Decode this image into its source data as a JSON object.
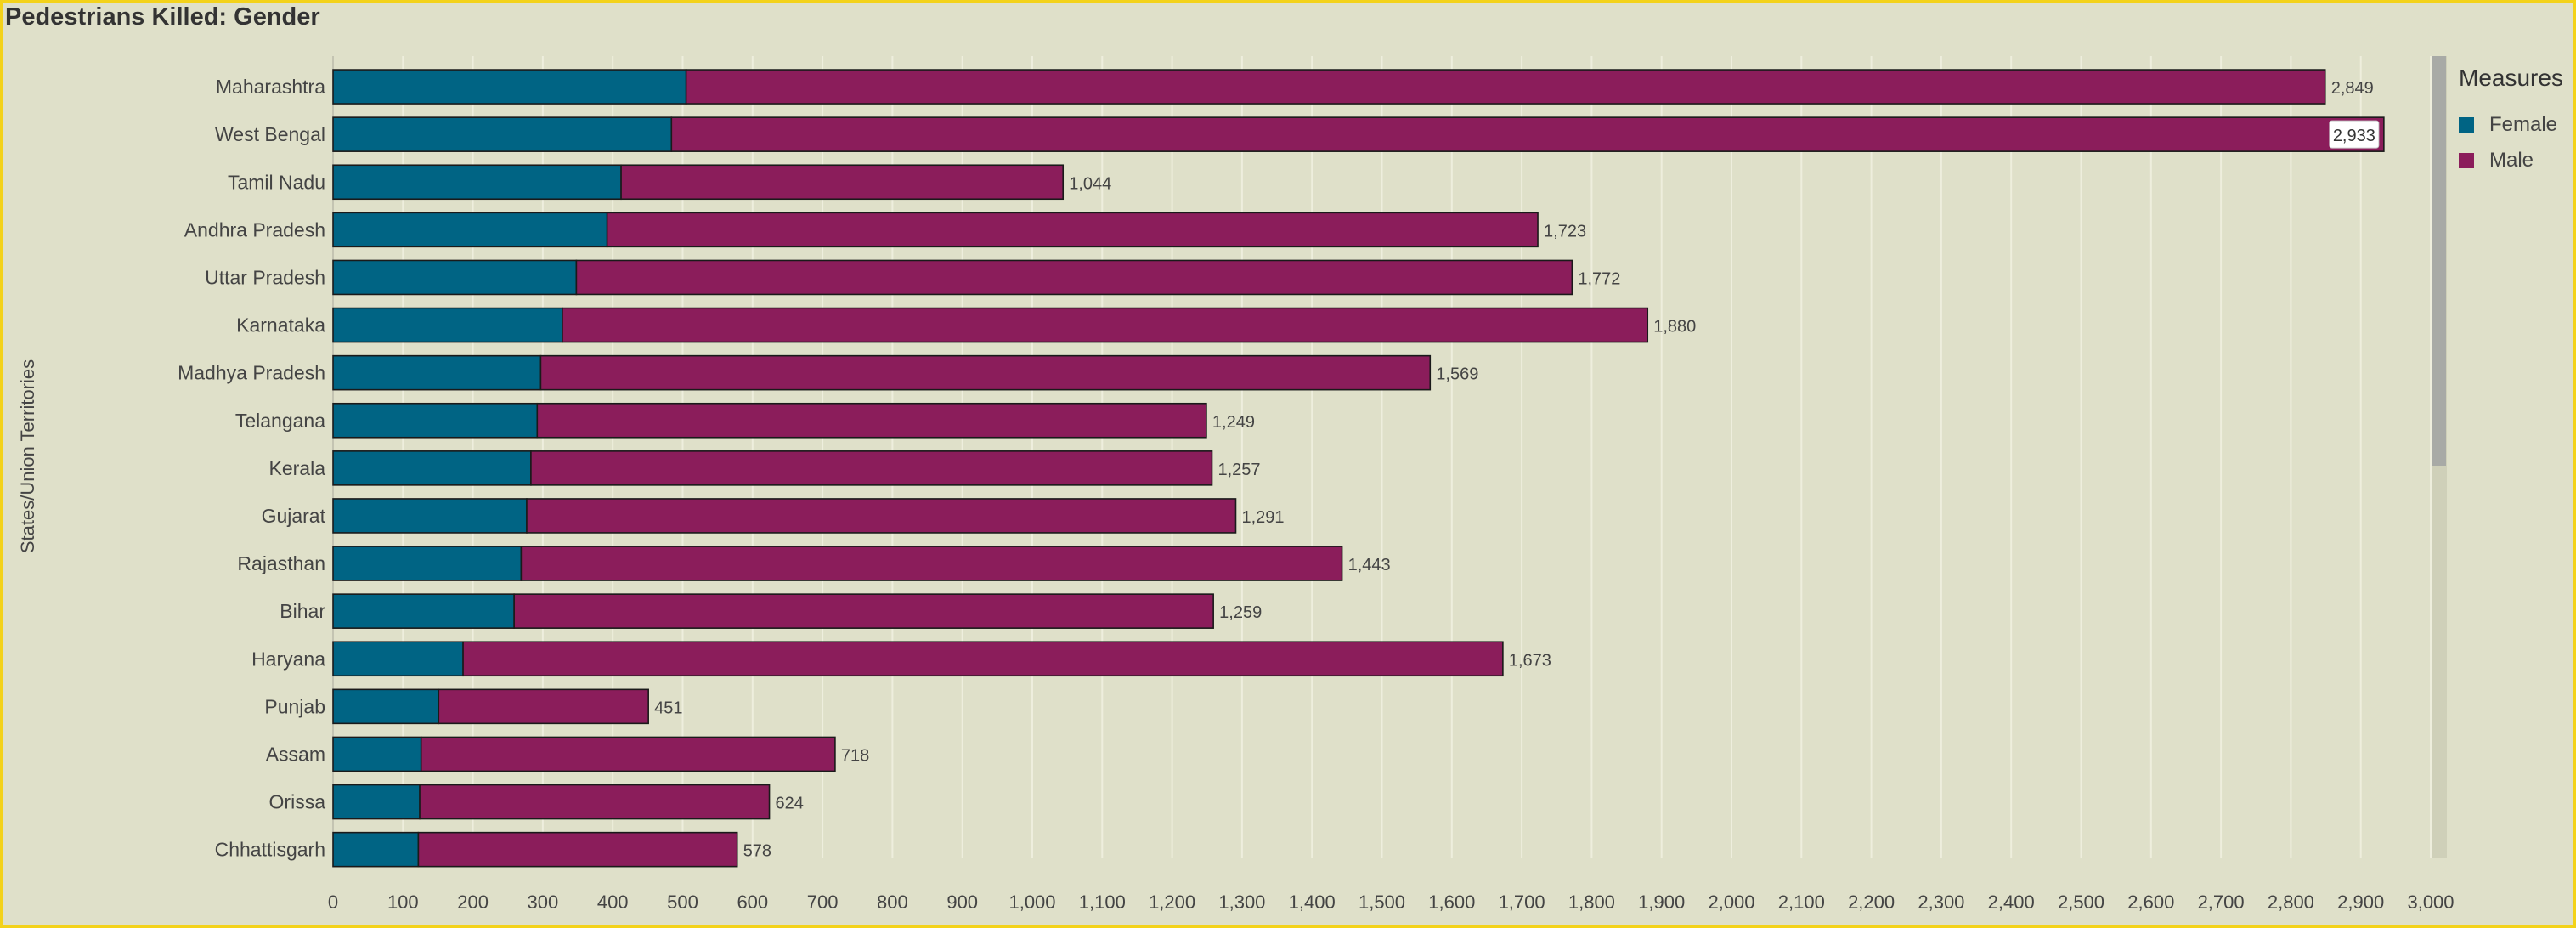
{
  "header": {
    "title": "Pedestrians Killed: Gender"
  },
  "legend": {
    "title": "Measures",
    "items": [
      {
        "label": "Female",
        "color": "#006484"
      },
      {
        "label": "Male",
        "color": "#8b1d5b"
      }
    ]
  },
  "chart_data": {
    "type": "bar",
    "orientation": "horizontal",
    "stacked": true,
    "title": "Pedestrians Killed: Gender",
    "xlabel": "",
    "ylabel": "States/Union Territories",
    "xlim": [
      0,
      3000
    ],
    "xticks": [
      0,
      100,
      200,
      300,
      400,
      500,
      600,
      700,
      800,
      900,
      1000,
      1100,
      1200,
      1300,
      1400,
      1500,
      1600,
      1700,
      1800,
      1900,
      2000,
      2100,
      2200,
      2300,
      2400,
      2500,
      2600,
      2700,
      2800,
      2900,
      3000
    ],
    "grid": true,
    "legend_position": "right",
    "categories": [
      "Maharashtra",
      "West Bengal",
      "Tamil Nadu",
      "Andhra Pradesh",
      "Uttar Pradesh",
      "Karnataka",
      "Madhya Pradesh",
      "Telangana",
      "Kerala",
      "Gujarat",
      "Rajasthan",
      "Bihar",
      "Haryana",
      "Punjab",
      "Assam",
      "Orissa",
      "Chhattisgarh"
    ],
    "series": [
      {
        "name": "Female",
        "color": "#006484",
        "values": [
          505,
          484,
          412,
          392,
          348,
          328,
          297,
          292,
          283,
          277,
          269,
          259,
          186,
          151,
          126,
          124,
          122
        ]
      },
      {
        "name": "Male",
        "color": "#8b1d5b",
        "values": [
          2344,
          2449,
          632,
          1331,
          1424,
          1552,
          1272,
          957,
          974,
          1014,
          1174,
          1000,
          1487,
          300,
          592,
          500,
          456
        ]
      }
    ],
    "totals": [
      2849,
      2933,
      1044,
      1723,
      1772,
      1880,
      1569,
      1249,
      1257,
      1291,
      1443,
      1259,
      1673,
      451,
      718,
      624,
      578
    ],
    "total_labels": [
      "2,849",
      "2,933",
      "1,044",
      "1,723",
      "1,772",
      "1,880",
      "1,569",
      "1,249",
      "1,257",
      "1,291",
      "1,443",
      "1,259",
      "1,673",
      "451",
      "718",
      "624",
      "578"
    ]
  }
}
